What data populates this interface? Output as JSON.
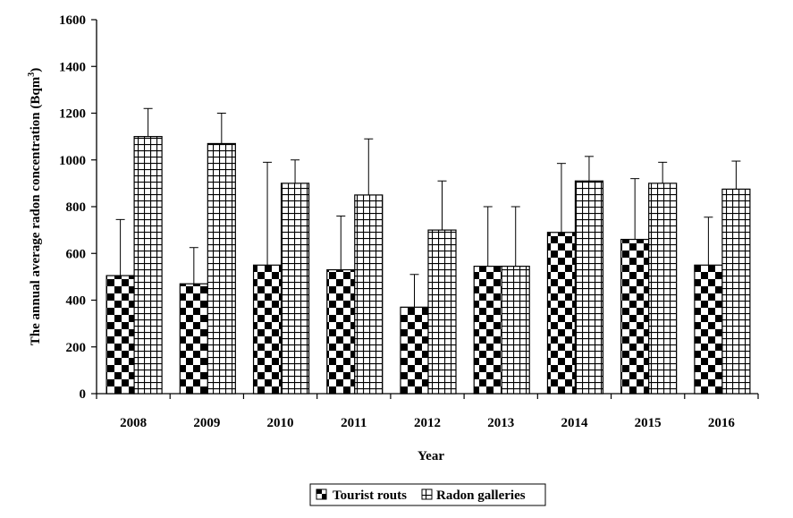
{
  "chart_data": {
    "type": "bar",
    "categories": [
      "2008",
      "2009",
      "2010",
      "2011",
      "2012",
      "2013",
      "2014",
      "2015",
      "2016"
    ],
    "series": [
      {
        "name": "Tourist routs",
        "pattern": "checkerboard",
        "values": [
          505,
          470,
          550,
          530,
          370,
          545,
          690,
          660,
          550
        ],
        "error_upper": [
          745,
          625,
          990,
          760,
          510,
          800,
          985,
          920,
          755
        ]
      },
      {
        "name": "Radon galleries",
        "pattern": "grid",
        "values": [
          1100,
          1070,
          900,
          850,
          700,
          545,
          910,
          900,
          875
        ],
        "error_upper": [
          1220,
          1200,
          1000,
          1090,
          910,
          800,
          1015,
          990,
          995
        ]
      }
    ],
    "ylim": [
      0,
      1600
    ],
    "yticks": [
      "0",
      "200",
      "400",
      "600",
      "800",
      "1000",
      "1200",
      "1400",
      "1600"
    ],
    "xlabel": "Year",
    "ylabel_main": "The annual average radon concentration (Bqm",
    "ylabel_sup": "3",
    "ylabel_close": ")",
    "legend_position": "bottom",
    "grid": false,
    "colors": {
      "bar_fill": "#ffffff",
      "pattern_ink": "#000000",
      "axis": "#000000"
    }
  }
}
